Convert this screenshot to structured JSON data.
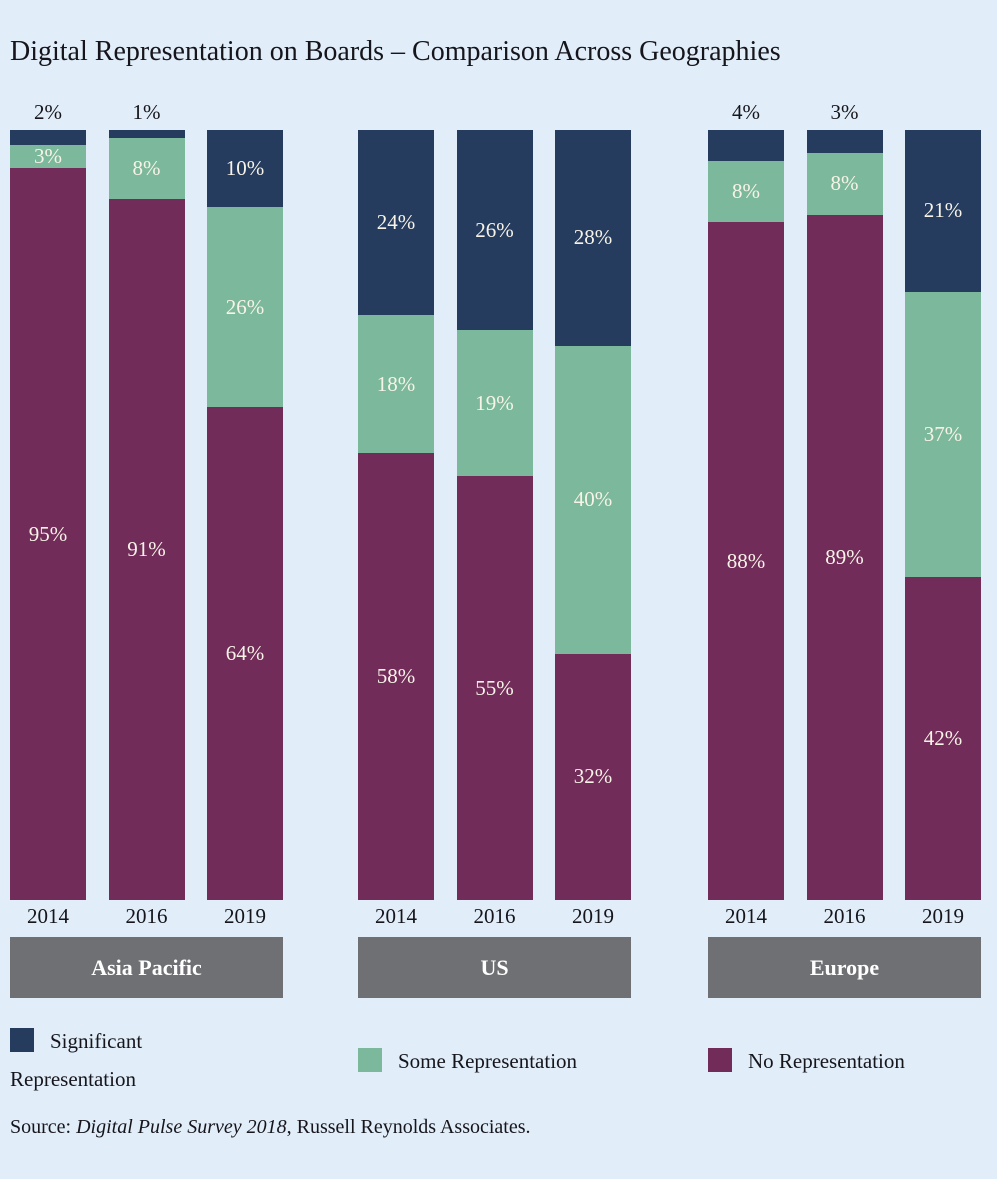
{
  "title": "Digital Representation on Boards – Comparison Across Geographies",
  "colors": {
    "background": "#E1EDF8",
    "significant": "#263C5F",
    "some": "#7CB89B",
    "no": "#712C5A",
    "band": "#6F7073",
    "light_label": "#F7F3E7",
    "dark_label": "#15151B"
  },
  "legend": [
    {
      "label": "Significant Representation",
      "color_key": "significant"
    },
    {
      "label": "Some Representation",
      "color_key": "some"
    },
    {
      "label": "No Representation",
      "color_key": "no"
    }
  ],
  "source": {
    "prefix": "Source: ",
    "italic": "Digital Pulse Survey 2018",
    "suffix": ", Russell Reynolds Associates."
  },
  "chart_data": {
    "type": "bar",
    "stacked": true,
    "unit": "%",
    "value_range": [
      0,
      100
    ],
    "series_order": [
      "significant",
      "some",
      "no"
    ],
    "series_names": {
      "significant": "Significant Representation",
      "some": "Some Representation",
      "no": "No Representation"
    },
    "groups": [
      {
        "label": "Asia Pacific",
        "bars": [
          {
            "year": "2014",
            "significant": 2,
            "some": 3,
            "no": 95
          },
          {
            "year": "2016",
            "significant": 1,
            "some": 8,
            "no": 91
          },
          {
            "year": "2019",
            "significant": 10,
            "some": 26,
            "no": 64
          }
        ]
      },
      {
        "label": "US",
        "bars": [
          {
            "year": "2014",
            "significant": 24,
            "some": 18,
            "no": 58
          },
          {
            "year": "2016",
            "significant": 26,
            "some": 19,
            "no": 55
          },
          {
            "year": "2019",
            "significant": 28,
            "some": 40,
            "no": 32
          }
        ]
      },
      {
        "label": "Europe",
        "bars": [
          {
            "year": "2014",
            "significant": 4,
            "some": 8,
            "no": 88
          },
          {
            "year": "2016",
            "significant": 3,
            "some": 8,
            "no": 89
          },
          {
            "year": "2019",
            "significant": 21,
            "some": 37,
            "no": 42
          }
        ]
      }
    ]
  }
}
